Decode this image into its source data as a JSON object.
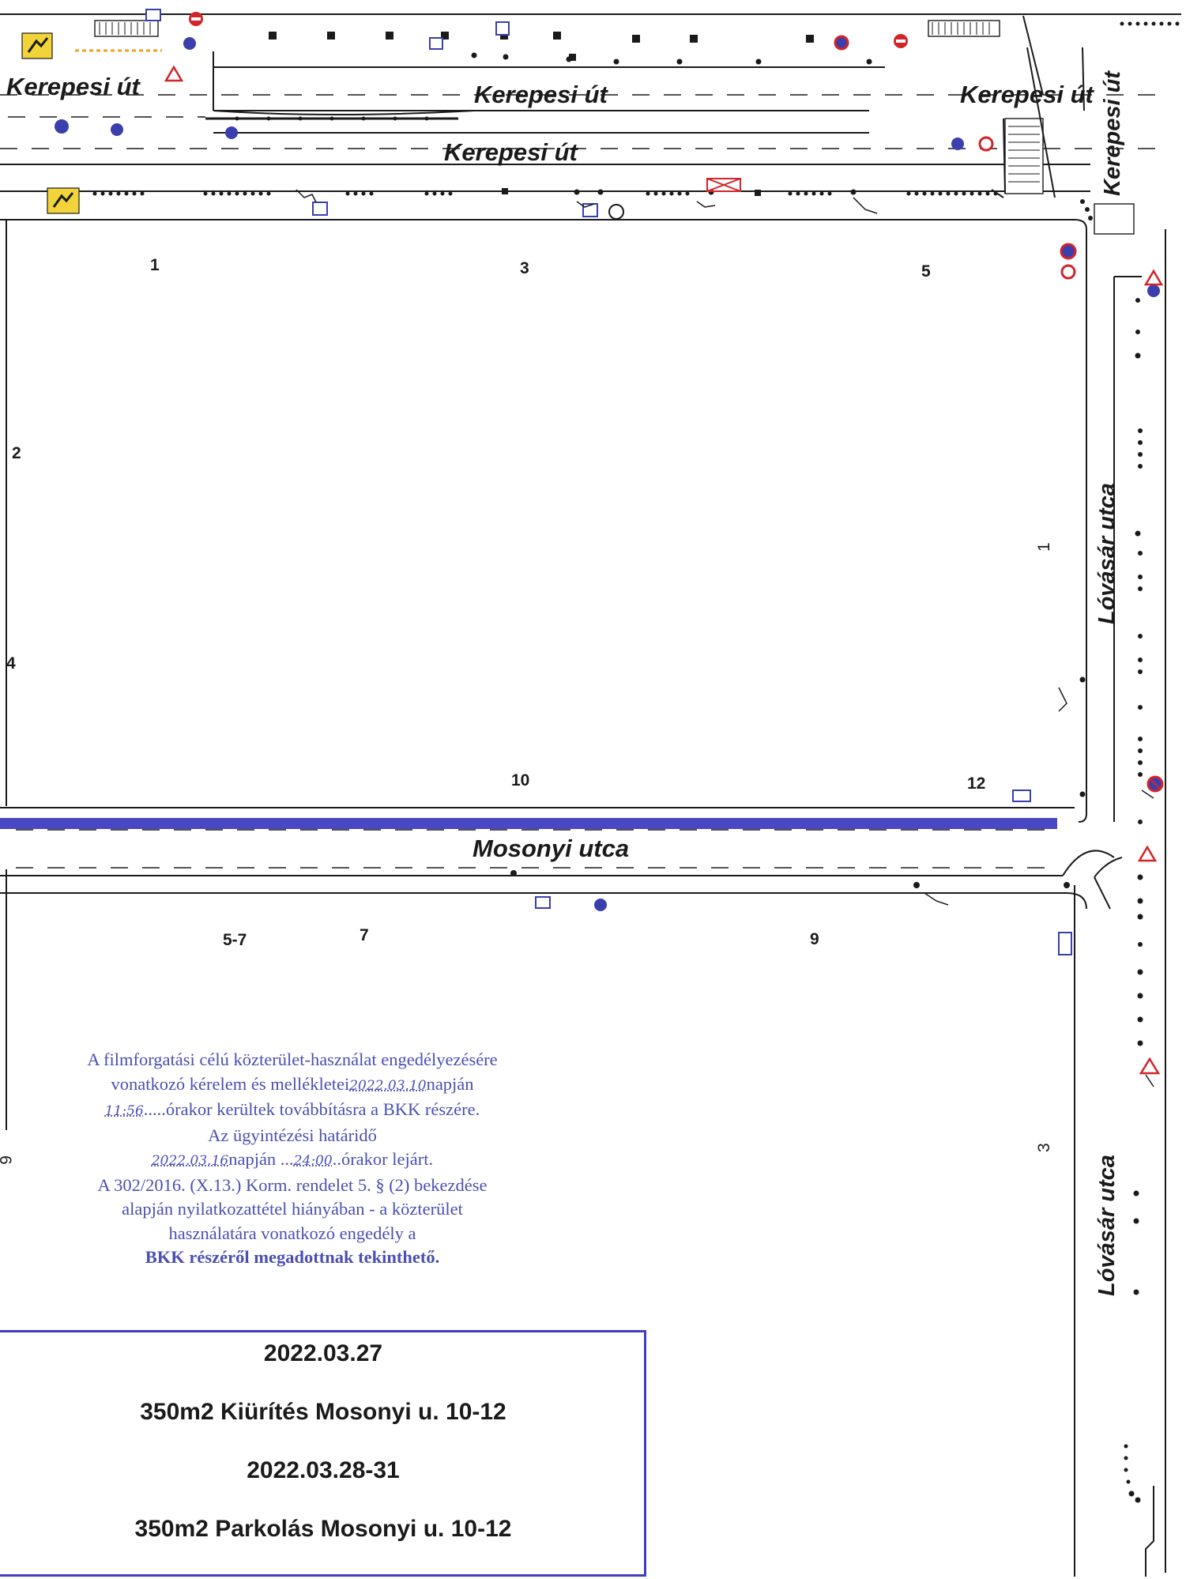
{
  "streets": {
    "kerepesi": "Kerepesi út",
    "mosonyi": "Mosonyi utca",
    "lovasar": "Lóvásár utca"
  },
  "house_numbers": {
    "n1": "1",
    "n3": "3",
    "n5": "5",
    "n2": "2",
    "n4": "4",
    "n10": "10",
    "n12": "12",
    "n57": "5-7",
    "n7": "7",
    "n9": "9",
    "n6": "6",
    "e1": "1",
    "e3": "3"
  },
  "stamp": {
    "line1": "A filmforgatási célú közterület-használat engedélyezésére",
    "line2_a": "vonatkozó kérelem és mellékletei",
    "line2_hw": "2022.03.10",
    "line2_b": "napján",
    "line3_hw": "11:56",
    "line3_b": ".....órakor kerültek továbbításra a BKK részére.",
    "line4": "Az ügyintézési határidő",
    "line5_hw1": "2022.03.16",
    "line5_a": "napján ...",
    "line5_hw2": "24:00",
    "line5_b": "..órakor lejárt.",
    "line6": "A 302/2016. (X.13.) Korm. rendelet 5. § (2) bekezdése",
    "line7": "alapján nyilatkozattétel hiányában - a közterület",
    "line8": "használatára vonatkozó engedély a",
    "line9": "BKK részéről megadottnak tekinthető."
  },
  "info": {
    "date1": "2022.03.27",
    "text1": "350m2 Kiürítés Mosonyi u. 10-12",
    "date2": "2022.03.28-31",
    "text2": "350m2 Parkolás Mosonyi u. 10-12"
  },
  "colors": {
    "ink": "#1a1a1a",
    "stamp": "#4b4fb4",
    "highlight": "#4a47c4",
    "sign_blue": "#3b3fae",
    "sign_red": "#d2242a",
    "yellow": "#f2d43a"
  }
}
